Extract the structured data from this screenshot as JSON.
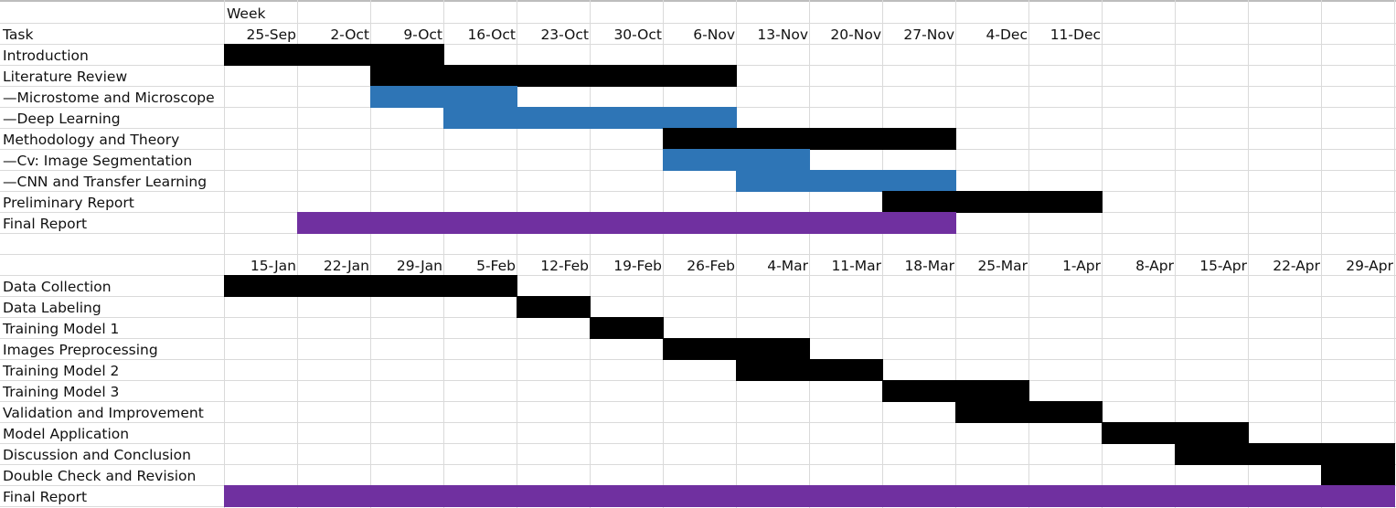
{
  "sheet_1": {
    "week_label": "Week",
    "task_label": "Task",
    "weeks": [
      "25-Sep",
      "2-Oct",
      "9-Oct",
      "16-Oct",
      "23-Oct",
      "30-Oct",
      "6-Nov",
      "13-Nov",
      "20-Nov",
      "27-Nov",
      "4-Dec",
      "11-Dec"
    ],
    "tasks": [
      {
        "label": "Introduction",
        "start": 0,
        "span": 3,
        "color": "black"
      },
      {
        "label": "Literature Review",
        "start": 2,
        "span": 5,
        "color": "black"
      },
      {
        "label": "—Microstome and Microscope",
        "start": 2,
        "span": 2,
        "color": "blue"
      },
      {
        "label": "—Deep Learning",
        "start": 3,
        "span": 4,
        "color": "blue"
      },
      {
        "label": "Methodology and Theory",
        "start": 6,
        "span": 4,
        "color": "black"
      },
      {
        "label": "—Cv: Image Segmentation",
        "start": 6,
        "span": 2,
        "color": "blue"
      },
      {
        "label": "—CNN and Transfer Learning",
        "start": 7,
        "span": 3,
        "color": "blue"
      },
      {
        "label": "Preliminary Report",
        "start": 9,
        "span": 3,
        "color": "black"
      },
      {
        "label": "Final Report",
        "start": 1,
        "span": 9,
        "color": "purple"
      }
    ]
  },
  "sheet_2": {
    "weeks": [
      "15-Jan",
      "22-Jan",
      "29-Jan",
      "5-Feb",
      "12-Feb",
      "19-Feb",
      "26-Feb",
      "4-Mar",
      "11-Mar",
      "18-Mar",
      "25-Mar",
      "1-Apr",
      "8-Apr",
      "15-Apr",
      "22-Apr",
      "29-Apr"
    ],
    "tasks": [
      {
        "label": "Data Collection",
        "start": 0,
        "span": 4,
        "color": "black"
      },
      {
        "label": "Data Labeling",
        "start": 4,
        "span": 1,
        "color": "black"
      },
      {
        "label": "Training Model 1",
        "start": 5,
        "span": 1,
        "color": "black"
      },
      {
        "label": "Images Preprocessing",
        "start": 6,
        "span": 2,
        "color": "black"
      },
      {
        "label": "Training Model 2",
        "start": 7,
        "span": 2,
        "color": "black"
      },
      {
        "label": "Training Model 3",
        "start": 9,
        "span": 2,
        "color": "black"
      },
      {
        "label": "Validation and Improvement",
        "start": 10,
        "span": 2,
        "color": "black"
      },
      {
        "label": "Model Application",
        "start": 12,
        "span": 2,
        "color": "black"
      },
      {
        "label": "Discussion and Conclusion",
        "start": 13,
        "span": 3,
        "color": "black"
      },
      {
        "label": "Double Check and Revision",
        "start": 15,
        "span": 1,
        "color": "black"
      },
      {
        "label": "Final Report",
        "start": 0,
        "span": 16,
        "color": "purple"
      }
    ]
  },
  "colors": {
    "black": "#000000",
    "blue": "#2e75b6",
    "purple": "#7030a0"
  }
}
